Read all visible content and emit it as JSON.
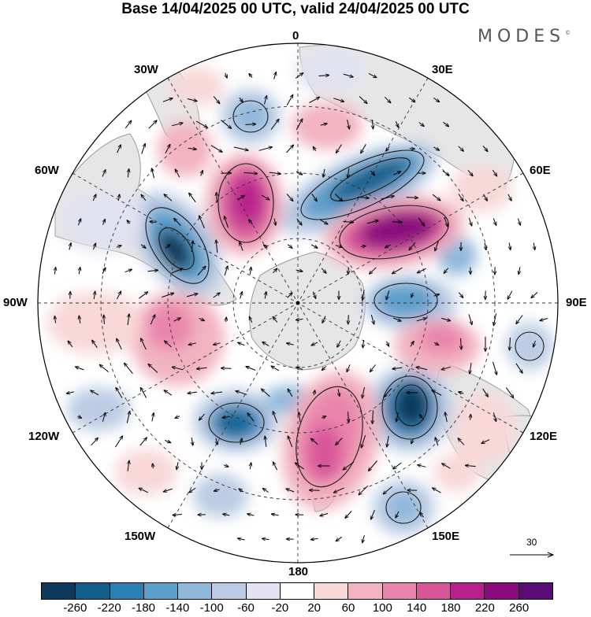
{
  "title": "Base 14/04/2025 00 UTC, valid 24/04/2025 00 UTC",
  "brand": "MODES",
  "brand_mark": "©",
  "longitude_labels": {
    "lon_0": "0",
    "lon_30e": "30E",
    "lon_60e": "60E",
    "lon_90e": "90E",
    "lon_120e": "120E",
    "lon_150e": "150E",
    "lon_180": "180",
    "lon_150w": "150W",
    "lon_120w": "120W",
    "lon_90w": "90W",
    "lon_60w": "60W",
    "lon_30w": "30W"
  },
  "reference_vector": {
    "label": "30"
  },
  "colorbar": {
    "ticks": [
      "-260",
      "-220",
      "-180",
      "-140",
      "-100",
      "-60",
      "-20",
      "20",
      "60",
      "100",
      "140",
      "180",
      "220",
      "260"
    ],
    "colors": [
      "#0d3a5c",
      "#125f8c",
      "#2a7fb3",
      "#5b9fcb",
      "#8fb8da",
      "#bccce4",
      "#e2e2f0",
      "#ffffff",
      "#f8d8d8",
      "#f2b3c0",
      "#e985ac",
      "#d8559a",
      "#b7208c",
      "#8b0b7e",
      "#5a0b74"
    ]
  },
  "field_colors": {
    "land": "#e8e8e8",
    "ocean": "#ffffff",
    "coast": "#9a9a9a"
  }
}
